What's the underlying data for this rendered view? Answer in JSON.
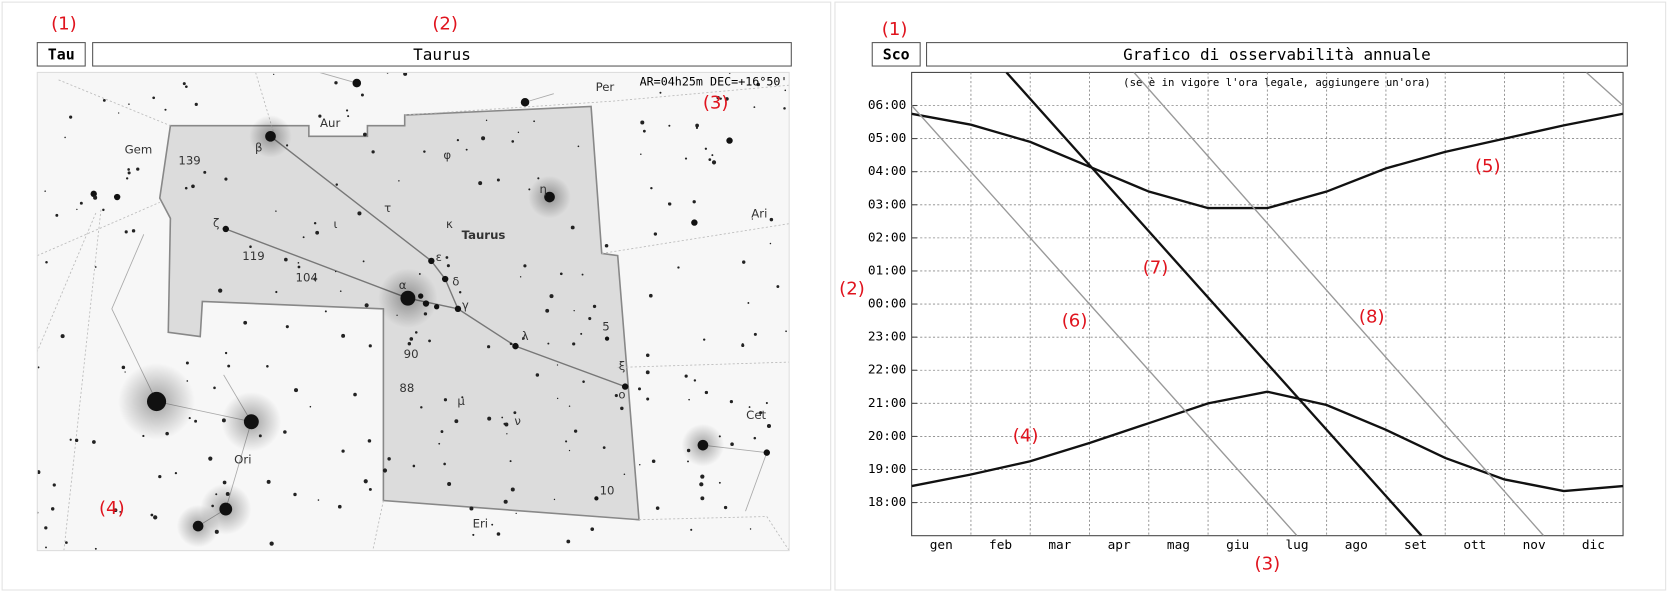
{
  "left_panel": {
    "annotations": [
      "(1)",
      "(2)",
      "(3)",
      "(4)"
    ],
    "abbreviation": "Tau",
    "title": "Taurus",
    "coordinates": "AR=04h25m DEC=+16°50'",
    "map_labels": [
      "Gem",
      "Aur",
      "Per",
      "Ari",
      "Cet",
      "Eri",
      "Ori",
      "Taurus",
      "139",
      "β",
      "ζ",
      "119",
      "104",
      "ι",
      "τ",
      "φ",
      "κ",
      "ε",
      "δ",
      "α",
      "γ",
      "η",
      "λ",
      "5",
      "ξ",
      "o",
      "90",
      "88",
      "μ",
      "ν",
      "10"
    ]
  },
  "right_panel": {
    "annotations": [
      "(1)",
      "(2)",
      "(3)",
      "(4)",
      "(5)",
      "(6)",
      "(7)",
      "(8)"
    ],
    "abbreviation": "Sco",
    "chart_data": {
      "type": "line",
      "title": "Grafico di osservabilità annuale",
      "subtitle": "(se è in vigore l'ora legale, aggiungere un'ora)",
      "categories": [
        "gen",
        "feb",
        "mar",
        "apr",
        "mag",
        "giu",
        "lug",
        "ago",
        "set",
        "ott",
        "nov",
        "dic"
      ],
      "xlim": [
        0,
        12
      ],
      "ylim": [
        17,
        31
      ],
      "yticks": [
        {
          "value": 18,
          "label": "18:00"
        },
        {
          "value": 19,
          "label": "19:00"
        },
        {
          "value": 20,
          "label": "20:00"
        },
        {
          "value": 21,
          "label": "21:00"
        },
        {
          "value": 22,
          "label": "22:00"
        },
        {
          "value": 23,
          "label": "23:00"
        },
        {
          "value": 24,
          "label": "00:00"
        },
        {
          "value": 25,
          "label": "01:00"
        },
        {
          "value": 26,
          "label": "02:00"
        },
        {
          "value": 27,
          "label": "03:00"
        },
        {
          "value": 28,
          "label": "04:00"
        },
        {
          "value": 29,
          "label": "05:00"
        },
        {
          "value": 30,
          "label": "06:00"
        }
      ],
      "grid": true,
      "series": [
        {
          "color": "#111111",
          "x": [
            0,
            1,
            2,
            3,
            4,
            5,
            6,
            7,
            8,
            9,
            10,
            11,
            12
          ],
          "values": [
            18.5,
            18.85,
            19.25,
            19.8,
            20.4,
            21.0,
            21.35,
            20.95,
            20.2,
            19.35,
            18.7,
            18.35,
            18.5
          ]
        },
        {
          "color": "#111111",
          "x": [
            0,
            1,
            2,
            3,
            4,
            5,
            6,
            7,
            8,
            9,
            10,
            11,
            12
          ],
          "values": [
            29.75,
            29.42,
            28.9,
            28.15,
            27.4,
            26.9,
            26.9,
            27.4,
            28.1,
            28.6,
            29.0,
            29.4,
            29.75
          ]
        },
        {
          "color": "#999999",
          "x": [
            0,
            6.5,
            9,
            11.38,
            12
          ],
          "values": [
            30,
            17,
            null,
            31,
            30
          ]
        },
        {
          "color": "#111111",
          "x": [
            1.6,
            8.6
          ],
          "values": [
            31,
            17
          ]
        },
        {
          "color": "#999999",
          "x": [
            3.75,
            10.66
          ],
          "values": [
            31,
            17
          ]
        }
      ]
    }
  }
}
